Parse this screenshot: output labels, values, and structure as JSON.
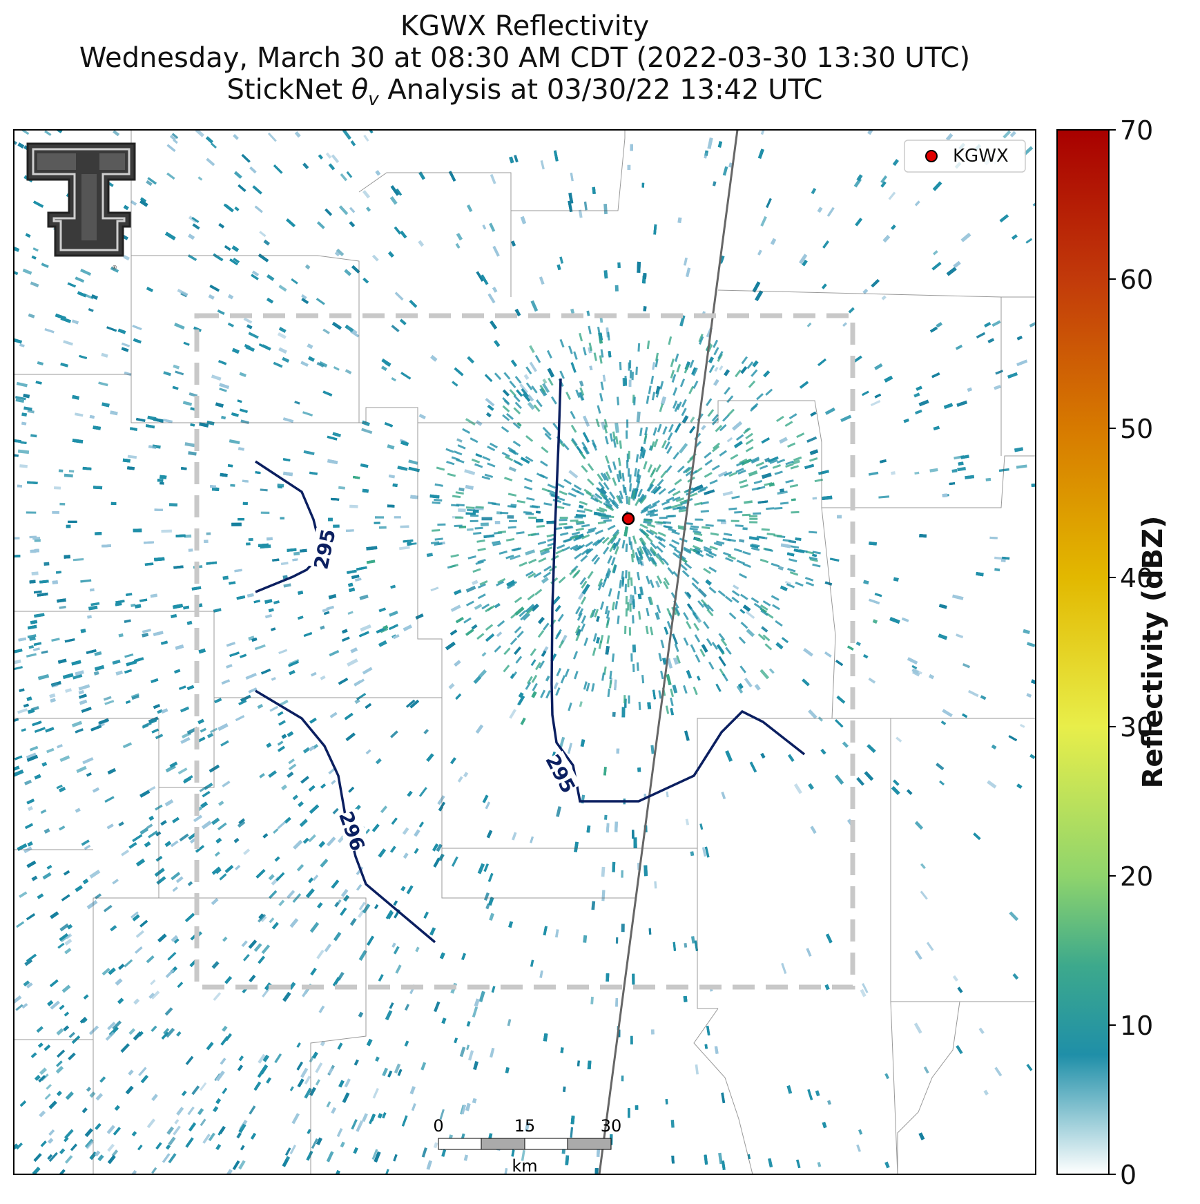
{
  "title": {
    "line1": "KGWX Reflectivity",
    "line2": "Wednesday, March 30 at 08:30 AM CDT (2022-03-30 13:30 UTC)",
    "line3_prefix": "StickNet ",
    "line3_symbol": "θ",
    "line3_subscript": "v",
    "line3_suffix": " Analysis at 03/30/22 13:42 UTC"
  },
  "legend": {
    "label": "KGWX",
    "marker_color": "#e00000"
  },
  "colorbar": {
    "label": "Reflectivity (dBZ)",
    "min": 0,
    "max": 70,
    "ticks": [
      0,
      10,
      20,
      30,
      40,
      50,
      60,
      70
    ],
    "stops": [
      {
        "value": 0,
        "color": "#ffffff"
      },
      {
        "value": 8,
        "color": "#1f8fa8"
      },
      {
        "value": 14,
        "color": "#3da98c"
      },
      {
        "value": 20,
        "color": "#8fd46c"
      },
      {
        "value": 30,
        "color": "#e8ee4a"
      },
      {
        "value": 40,
        "color": "#e2b800"
      },
      {
        "value": 50,
        "color": "#d77a00"
      },
      {
        "value": 60,
        "color": "#c23a0a"
      },
      {
        "value": 70,
        "color": "#a80000"
      }
    ]
  },
  "contours": [
    {
      "label": "295",
      "color": "#0b1f60"
    },
    {
      "label": "295",
      "color": "#0b1f60"
    },
    {
      "label": "296",
      "color": "#0b1f60"
    }
  ],
  "scalebar": {
    "ticks": [
      "0",
      "15",
      "30"
    ],
    "unit": "km"
  },
  "colors": {
    "echo_main": "#1f8fa8",
    "echo_dark": "#17809e",
    "echo_light": "#9cc6dc",
    "echo_green": "#3aa98a",
    "analysis_box": "#c8c8c8",
    "county_line": "#555555"
  }
}
